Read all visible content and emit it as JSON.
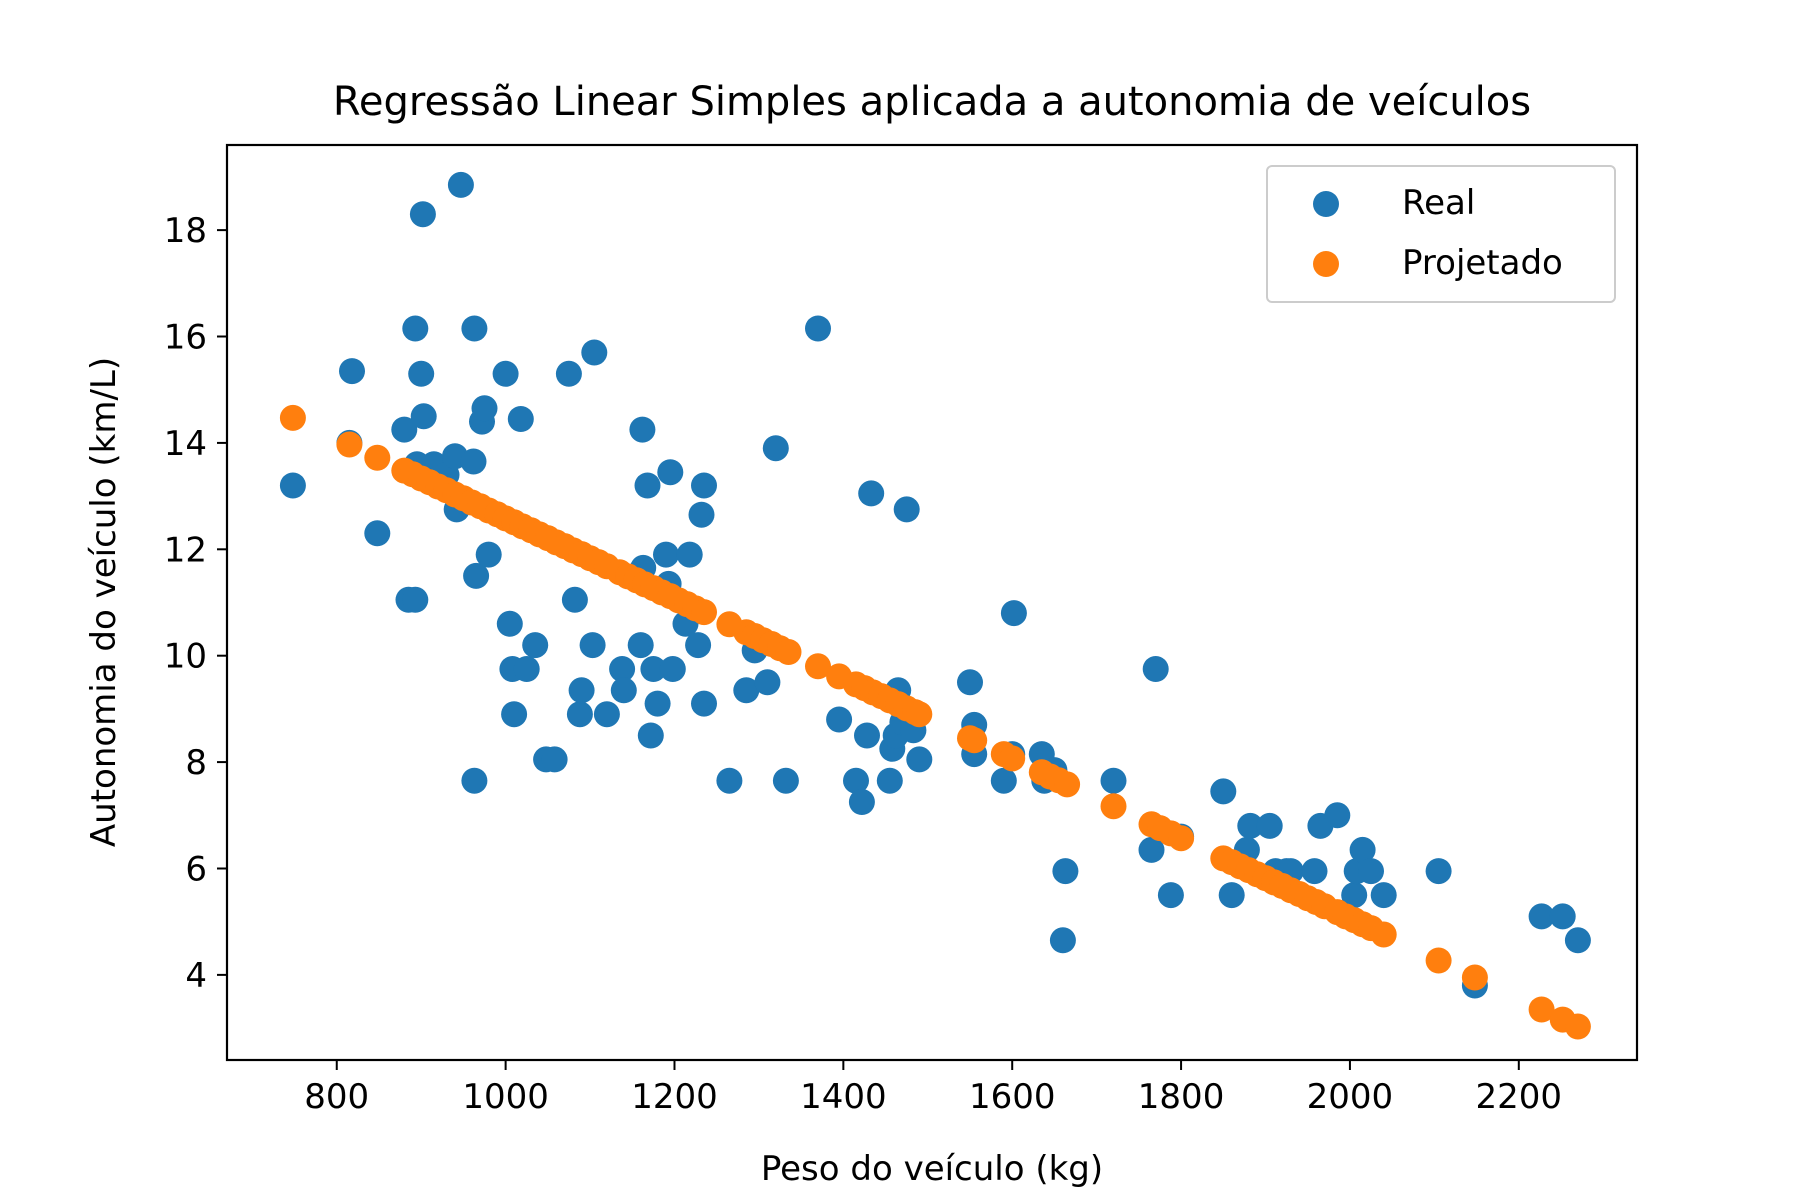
{
  "chart_data": {
    "type": "scatter",
    "title": "Regressão Linear Simples aplicada a autonomia de veículos",
    "xlabel": "Peso do veículo (kg)",
    "ylabel": "Autonomia do veículo (km/L)",
    "xlim": [
      670,
      2340
    ],
    "ylim": [
      2.4,
      19.6
    ],
    "xticks": [
      800,
      1000,
      1200,
      1400,
      1600,
      1800,
      2000,
      2200
    ],
    "yticks": [
      4,
      6,
      8,
      10,
      12,
      14,
      16,
      18
    ],
    "grid": false,
    "legend_position": "top-right",
    "series": [
      {
        "name": "Real",
        "color": "#1f77b4",
        "points": [
          [
            748,
            13.2
          ],
          [
            815,
            14.0
          ],
          [
            818,
            15.35
          ],
          [
            848,
            12.3
          ],
          [
            880,
            14.25
          ],
          [
            885,
            11.05
          ],
          [
            893,
            11.05
          ],
          [
            893,
            16.15
          ],
          [
            895,
            13.6
          ],
          [
            900,
            15.3
          ],
          [
            903,
            14.5
          ],
          [
            902,
            18.3
          ],
          [
            915,
            13.6
          ],
          [
            930,
            13.4
          ],
          [
            940,
            13.75
          ],
          [
            942,
            12.75
          ],
          [
            947,
            18.85
          ],
          [
            962,
            13.65
          ],
          [
            963,
            16.15
          ],
          [
            963,
            7.65
          ],
          [
            965,
            11.5
          ],
          [
            972,
            14.4
          ],
          [
            975,
            14.65
          ],
          [
            980,
            11.9
          ],
          [
            1000,
            15.3
          ],
          [
            1005,
            10.6
          ],
          [
            1008,
            9.75
          ],
          [
            1010,
            8.9
          ],
          [
            1018,
            14.45
          ],
          [
            1025,
            9.75
          ],
          [
            1035,
            10.2
          ],
          [
            1048,
            8.05
          ],
          [
            1058,
            8.05
          ],
          [
            1075,
            15.3
          ],
          [
            1082,
            11.05
          ],
          [
            1088,
            8.9
          ],
          [
            1090,
            9.35
          ],
          [
            1103,
            10.2
          ],
          [
            1105,
            15.7
          ],
          [
            1120,
            8.9
          ],
          [
            1138,
            9.75
          ],
          [
            1140,
            9.35
          ],
          [
            1160,
            10.2
          ],
          [
            1162,
            14.25
          ],
          [
            1163,
            11.65
          ],
          [
            1168,
            13.2
          ],
          [
            1172,
            8.5
          ],
          [
            1175,
            9.75
          ],
          [
            1180,
            9.1
          ],
          [
            1190,
            11.9
          ],
          [
            1193,
            11.35
          ],
          [
            1195,
            13.45
          ],
          [
            1198,
            9.75
          ],
          [
            1213,
            10.6
          ],
          [
            1218,
            11.9
          ],
          [
            1228,
            10.2
          ],
          [
            1232,
            12.65
          ],
          [
            1235,
            13.2
          ],
          [
            1235,
            9.1
          ],
          [
            1265,
            7.65
          ],
          [
            1285,
            9.35
          ],
          [
            1295,
            10.1
          ],
          [
            1310,
            9.5
          ],
          [
            1320,
            13.9
          ],
          [
            1332,
            7.65
          ],
          [
            1370,
            16.15
          ],
          [
            1395,
            8.8
          ],
          [
            1415,
            7.65
          ],
          [
            1422,
            7.25
          ],
          [
            1428,
            8.5
          ],
          [
            1433,
            13.05
          ],
          [
            1455,
            7.65
          ],
          [
            1458,
            8.25
          ],
          [
            1462,
            8.5
          ],
          [
            1465,
            9.35
          ],
          [
            1470,
            8.75
          ],
          [
            1475,
            12.75
          ],
          [
            1483,
            8.6
          ],
          [
            1490,
            8.05
          ],
          [
            1550,
            9.5
          ],
          [
            1555,
            8.7
          ],
          [
            1555,
            8.15
          ],
          [
            1590,
            7.65
          ],
          [
            1600,
            8.15
          ],
          [
            1602,
            10.8
          ],
          [
            1635,
            8.15
          ],
          [
            1638,
            7.65
          ],
          [
            1650,
            7.85
          ],
          [
            1660,
            4.65
          ],
          [
            1663,
            5.95
          ],
          [
            1720,
            7.65
          ],
          [
            1765,
            6.35
          ],
          [
            1770,
            9.75
          ],
          [
            1788,
            5.5
          ],
          [
            1800,
            6.6
          ],
          [
            1850,
            7.45
          ],
          [
            1860,
            5.5
          ],
          [
            1878,
            6.35
          ],
          [
            1882,
            6.8
          ],
          [
            1905,
            6.8
          ],
          [
            1912,
            5.95
          ],
          [
            1925,
            5.95
          ],
          [
            1930,
            5.95
          ],
          [
            1958,
            5.95
          ],
          [
            1965,
            6.8
          ],
          [
            1985,
            7.0
          ],
          [
            2005,
            5.5
          ],
          [
            2008,
            5.95
          ],
          [
            2015,
            6.35
          ],
          [
            2025,
            5.95
          ],
          [
            2040,
            5.5
          ],
          [
            2105,
            5.95
          ],
          [
            2148,
            3.8
          ],
          [
            2227,
            5.1
          ],
          [
            2252,
            5.1
          ],
          [
            2270,
            4.65
          ]
        ]
      },
      {
        "name": "Projetado",
        "color": "#ff7f0e",
        "points": [
          [
            748,
            14.47
          ],
          [
            815,
            13.97
          ],
          [
            848,
            13.72
          ],
          [
            880,
            13.48
          ],
          [
            890,
            13.41
          ],
          [
            900,
            13.33
          ],
          [
            910,
            13.26
          ],
          [
            920,
            13.18
          ],
          [
            930,
            13.11
          ],
          [
            940,
            13.03
          ],
          [
            950,
            12.96
          ],
          [
            960,
            12.88
          ],
          [
            970,
            12.81
          ],
          [
            980,
            12.73
          ],
          [
            990,
            12.66
          ],
          [
            1000,
            12.58
          ],
          [
            1010,
            12.51
          ],
          [
            1020,
            12.43
          ],
          [
            1030,
            12.36
          ],
          [
            1040,
            12.28
          ],
          [
            1050,
            12.21
          ],
          [
            1060,
            12.13
          ],
          [
            1070,
            12.06
          ],
          [
            1080,
            11.98
          ],
          [
            1090,
            11.91
          ],
          [
            1100,
            11.83
          ],
          [
            1110,
            11.76
          ],
          [
            1120,
            11.68
          ],
          [
            1135,
            11.57
          ],
          [
            1145,
            11.49
          ],
          [
            1155,
            11.42
          ],
          [
            1165,
            11.34
          ],
          [
            1175,
            11.27
          ],
          [
            1185,
            11.19
          ],
          [
            1195,
            11.12
          ],
          [
            1205,
            11.04
          ],
          [
            1215,
            10.97
          ],
          [
            1225,
            10.89
          ],
          [
            1235,
            10.82
          ],
          [
            1265,
            10.59
          ],
          [
            1285,
            10.44
          ],
          [
            1295,
            10.37
          ],
          [
            1305,
            10.29
          ],
          [
            1315,
            10.22
          ],
          [
            1325,
            10.14
          ],
          [
            1335,
            10.07
          ],
          [
            1370,
            9.8
          ],
          [
            1395,
            9.61
          ],
          [
            1415,
            9.46
          ],
          [
            1425,
            9.39
          ],
          [
            1435,
            9.31
          ],
          [
            1445,
            9.24
          ],
          [
            1455,
            9.16
          ],
          [
            1465,
            9.09
          ],
          [
            1475,
            9.01
          ],
          [
            1485,
            8.94
          ],
          [
            1490,
            8.9
          ],
          [
            1550,
            8.45
          ],
          [
            1555,
            8.41
          ],
          [
            1590,
            8.15
          ],
          [
            1600,
            8.07
          ],
          [
            1635,
            7.81
          ],
          [
            1645,
            7.73
          ],
          [
            1655,
            7.66
          ],
          [
            1665,
            7.58
          ],
          [
            1720,
            7.17
          ],
          [
            1765,
            6.83
          ],
          [
            1775,
            6.76
          ],
          [
            1788,
            6.66
          ],
          [
            1800,
            6.57
          ],
          [
            1850,
            6.19
          ],
          [
            1860,
            6.12
          ],
          [
            1870,
            6.04
          ],
          [
            1880,
            5.97
          ],
          [
            1890,
            5.89
          ],
          [
            1900,
            5.82
          ],
          [
            1910,
            5.74
          ],
          [
            1920,
            5.67
          ],
          [
            1930,
            5.59
          ],
          [
            1940,
            5.52
          ],
          [
            1950,
            5.44
          ],
          [
            1960,
            5.37
          ],
          [
            1970,
            5.29
          ],
          [
            1985,
            5.18
          ],
          [
            1995,
            5.1
          ],
          [
            2005,
            5.03
          ],
          [
            2015,
            4.95
          ],
          [
            2025,
            4.88
          ],
          [
            2040,
            4.76
          ],
          [
            2105,
            4.27
          ],
          [
            2148,
            3.95
          ],
          [
            2227,
            3.35
          ],
          [
            2252,
            3.16
          ],
          [
            2270,
            3.03
          ]
        ]
      }
    ]
  }
}
